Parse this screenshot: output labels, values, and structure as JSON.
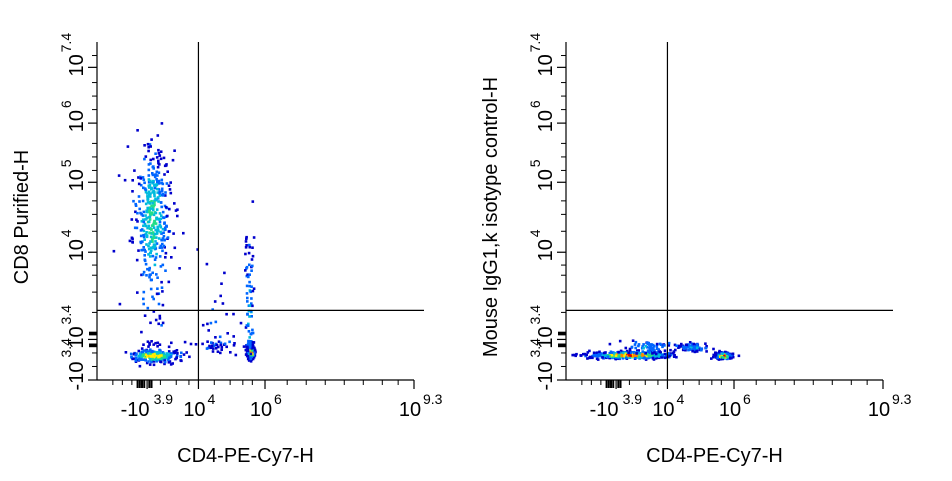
{
  "palette": [
    "#0000cc",
    "#0066ff",
    "#00bbdd",
    "#22dd88",
    "#ffee00",
    "#ff8800",
    "#dd0000"
  ],
  "chart_data": [
    {
      "type": "scatter",
      "xlabel": "CD4-PE-Cy7-H",
      "ylabel": "CD8 Purified-H",
      "x_scale": "biexponential",
      "y_scale": "biexponential",
      "x_ticks": [
        {
          "base": "-10",
          "exp": "3.9"
        },
        {
          "base": "10",
          "exp": "4"
        },
        {
          "base": "10",
          "exp": "6"
        },
        {
          "base": "10",
          "exp": "9.3"
        }
      ],
      "y_ticks": [
        {
          "base": "-10",
          "exp": "3.4"
        },
        {
          "base": "10",
          "exp": "3.4"
        },
        {
          "base": "10",
          "exp": "4"
        },
        {
          "base": "10",
          "exp": "5"
        },
        {
          "base": "10",
          "exp": "6"
        },
        {
          "base": "10",
          "exp": "7.4"
        }
      ],
      "quadrant_gate": {
        "x_log": 4.0,
        "y_log": 3.6
      },
      "populations": [
        {
          "x_log": 3.55,
          "y_log": 4.5,
          "sx": 0.09,
          "sy": 0.55,
          "n": 420,
          "d": 0.45
        },
        {
          "x_log": 3.57,
          "y_log": 2.5,
          "sx": 0.12,
          "sy": 0.18,
          "n": 260,
          "d": 0.75
        },
        {
          "x_log": 5.55,
          "y_log": 2.7,
          "sx": 0.05,
          "sy": 0.16,
          "n": 380,
          "d": 0.95
        },
        {
          "x_log": 5.5,
          "y_log": 3.55,
          "sx": 0.07,
          "sy": 0.35,
          "n": 90,
          "d": 0.3
        },
        {
          "x_log": 4.5,
          "y_log": 3.2,
          "sx": 0.35,
          "sy": 0.3,
          "n": 55,
          "d": 0.1
        }
      ]
    },
    {
      "type": "scatter",
      "xlabel": "CD4-PE-Cy7-H",
      "ylabel": "Mouse IgG1,k isotype control-H",
      "x_scale": "biexponential",
      "y_scale": "biexponential",
      "x_ticks": [
        {
          "base": "-10",
          "exp": "3.9"
        },
        {
          "base": "10",
          "exp": "4"
        },
        {
          "base": "10",
          "exp": "6"
        },
        {
          "base": "10",
          "exp": "9.3"
        }
      ],
      "y_ticks": [
        {
          "base": "-10",
          "exp": "3.4"
        },
        {
          "base": "10",
          "exp": "3.4"
        },
        {
          "base": "10",
          "exp": "4"
        },
        {
          "base": "10",
          "exp": "5"
        },
        {
          "base": "10",
          "exp": "6"
        },
        {
          "base": "10",
          "exp": "7.4"
        }
      ],
      "quadrant_gate": {
        "x_log": 4.0,
        "y_log": 3.6
      },
      "populations": [
        {
          "x_log": 3.65,
          "y_log": 2.55,
          "sx": 0.2,
          "sy": 0.1,
          "n": 520,
          "d": 0.95
        },
        {
          "x_log": 3.8,
          "y_log": 3.05,
          "sx": 0.12,
          "sy": 0.2,
          "n": 60,
          "d": 0.25
        },
        {
          "x_log": 5.65,
          "y_log": 2.5,
          "sx": 0.12,
          "sy": 0.09,
          "n": 300,
          "d": 0.95
        },
        {
          "x_log": 4.7,
          "y_log": 3.0,
          "sx": 0.25,
          "sy": 0.15,
          "n": 80,
          "d": 0.25
        }
      ]
    }
  ]
}
